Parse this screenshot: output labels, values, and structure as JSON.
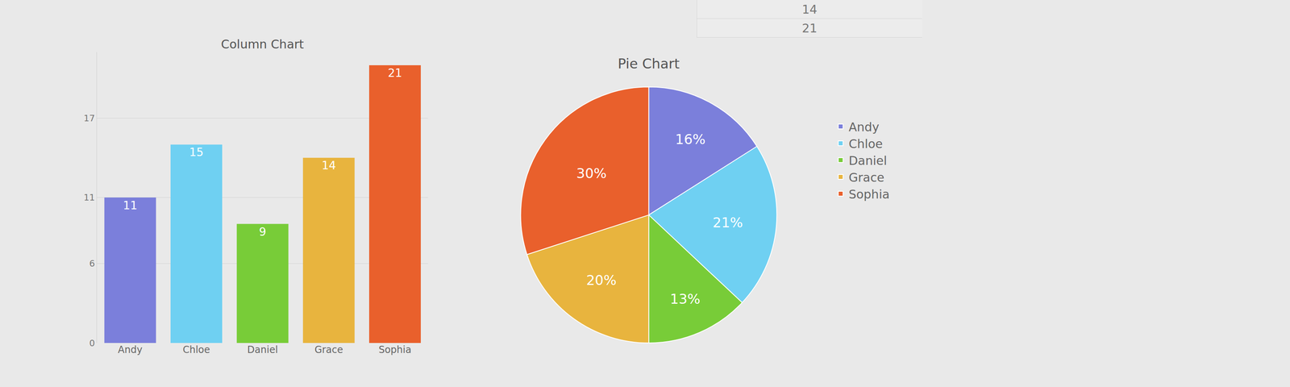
{
  "chart_data": [
    {
      "type": "bar",
      "title": "Column Chart",
      "categories": [
        "Andy",
        "Chloe",
        "Daniel",
        "Grace",
        "Sophia"
      ],
      "values": [
        11,
        15,
        9,
        14,
        21
      ],
      "colors": [
        "#7b7fdb",
        "#6fd0f2",
        "#78cc38",
        "#e8b43e",
        "#e9602c"
      ],
      "ylim": [
        0,
        22
      ],
      "yticks": [
        0,
        6,
        11,
        17
      ],
      "grid": true,
      "data_labels": true
    },
    {
      "type": "pie",
      "title": "Pie Chart",
      "categories": [
        "Andy",
        "Chloe",
        "Daniel",
        "Grace",
        "Sophia"
      ],
      "values": [
        16,
        21,
        13,
        20,
        30
      ],
      "value_labels": [
        "16%",
        "21%",
        "13%",
        "20%",
        "30%"
      ],
      "colors": [
        "#7b7fdb",
        "#6fd0f2",
        "#78cc38",
        "#e8b43e",
        "#e9602c"
      ],
      "legend": "right",
      "data_labels": true
    }
  ],
  "table": {
    "rows": [
      [
        14
      ],
      [
        21
      ]
    ]
  }
}
